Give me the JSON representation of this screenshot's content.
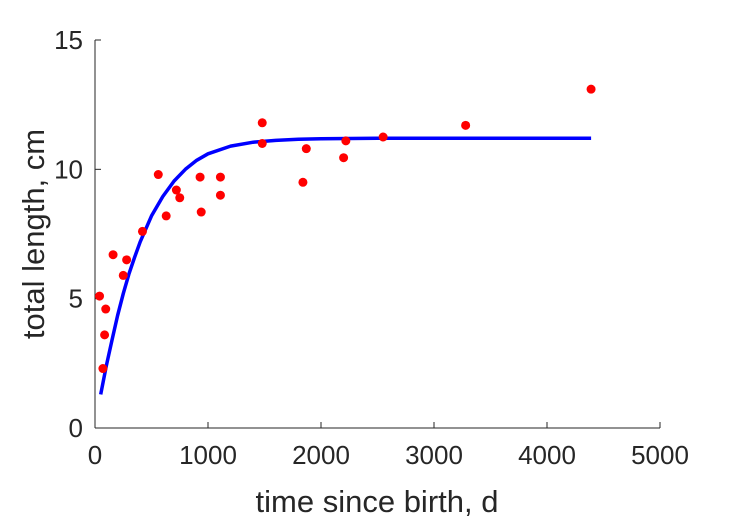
{
  "chart_data": {
    "type": "scatter",
    "title": "",
    "xlabel": "time since birth, d",
    "ylabel": "total length, cm",
    "xlim": [
      0,
      5000
    ],
    "ylim": [
      0,
      15
    ],
    "xticks": [
      0,
      1000,
      2000,
      3000,
      4000,
      5000
    ],
    "yticks": [
      0,
      5,
      10,
      15
    ],
    "xtick_labels": [
      "0",
      "1000",
      "2000",
      "3000",
      "4000",
      "5000"
    ],
    "ytick_labels": [
      "0",
      "5",
      "10",
      "15"
    ],
    "grid": false,
    "legend": "none",
    "series": [
      {
        "type": "scatter",
        "color": "#ff0000",
        "points": [
          {
            "x": 40,
            "y": 5.1
          },
          {
            "x": 70,
            "y": 2.3
          },
          {
            "x": 85,
            "y": 3.6
          },
          {
            "x": 95,
            "y": 4.6
          },
          {
            "x": 160,
            "y": 6.7
          },
          {
            "x": 250,
            "y": 5.9
          },
          {
            "x": 280,
            "y": 6.5
          },
          {
            "x": 420,
            "y": 7.6
          },
          {
            "x": 560,
            "y": 9.8
          },
          {
            "x": 630,
            "y": 8.2
          },
          {
            "x": 720,
            "y": 9.2
          },
          {
            "x": 750,
            "y": 8.9
          },
          {
            "x": 930,
            "y": 9.7
          },
          {
            "x": 940,
            "y": 8.35
          },
          {
            "x": 1110,
            "y": 9.7
          },
          {
            "x": 1110,
            "y": 9.0
          },
          {
            "x": 1480,
            "y": 11.8
          },
          {
            "x": 1480,
            "y": 11.0
          },
          {
            "x": 1840,
            "y": 9.5
          },
          {
            "x": 1870,
            "y": 10.8
          },
          {
            "x": 2200,
            "y": 10.45
          },
          {
            "x": 2220,
            "y": 11.1
          },
          {
            "x": 2550,
            "y": 11.25
          },
          {
            "x": 3280,
            "y": 11.7
          },
          {
            "x": 4390,
            "y": 13.1
          }
        ]
      },
      {
        "type": "line",
        "color": "#0000ff",
        "x": [
          50,
          100,
          150,
          200,
          250,
          300,
          350,
          400,
          500,
          600,
          700,
          800,
          900,
          1000,
          1200,
          1400,
          1600,
          1800,
          2000,
          2500,
          3000,
          3500,
          4000,
          4390
        ],
        "y": [
          1.3,
          2.4,
          3.4,
          4.35,
          5.2,
          5.95,
          6.6,
          7.2,
          8.2,
          8.95,
          9.55,
          10.0,
          10.35,
          10.6,
          10.9,
          11.05,
          11.12,
          11.16,
          11.18,
          11.2,
          11.2,
          11.2,
          11.2,
          11.2
        ]
      }
    ]
  }
}
